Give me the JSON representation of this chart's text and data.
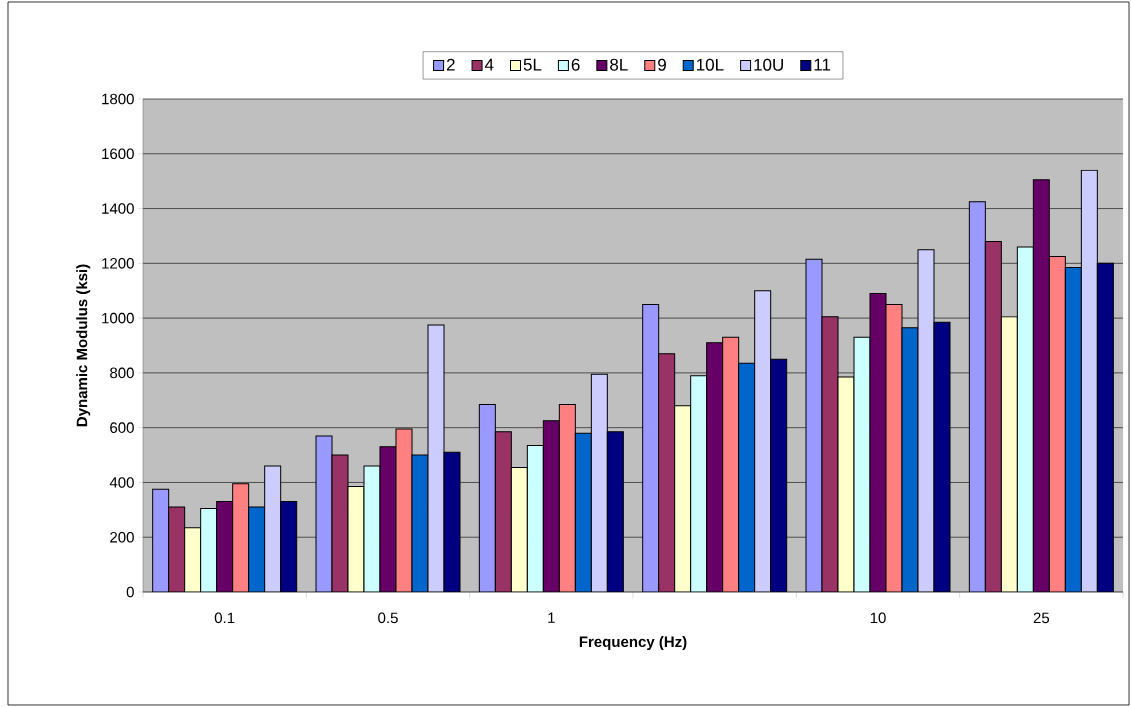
{
  "chart_data": {
    "type": "bar",
    "xlabel": "Frequency (Hz)",
    "ylabel": "Dynamic Modulus (ksi)",
    "categories": [
      "0.1",
      "0.5",
      "1",
      null,
      "10",
      "25"
    ],
    "series": [
      {
        "name": "2",
        "color": "#9999ff",
        "values": [
          375,
          570,
          685,
          1050,
          1215,
          1425
        ]
      },
      {
        "name": "4",
        "color": "#993366",
        "values": [
          310,
          500,
          585,
          870,
          1005,
          1280
        ]
      },
      {
        "name": "5L",
        "color": "#ffffcc",
        "values": [
          235,
          385,
          455,
          680,
          785,
          1005
        ]
      },
      {
        "name": "6",
        "color": "#ccffff",
        "values": [
          305,
          460,
          535,
          790,
          930,
          1260
        ]
      },
      {
        "name": "8L",
        "color": "#660066",
        "values": [
          330,
          530,
          625,
          910,
          1090,
          1505
        ]
      },
      {
        "name": "9",
        "color": "#ff8080",
        "values": [
          395,
          595,
          685,
          930,
          1050,
          1225
        ]
      },
      {
        "name": "10L",
        "color": "#0066cc",
        "values": [
          310,
          500,
          580,
          835,
          965,
          1185
        ]
      },
      {
        "name": "10U",
        "color": "#ccccff",
        "values": [
          460,
          975,
          795,
          1100,
          1250,
          1540
        ]
      },
      {
        "name": "11",
        "color": "#000080",
        "values": [
          330,
          510,
          585,
          850,
          985,
          1200
        ]
      }
    ],
    "ylim": [
      0,
      1800
    ],
    "yticks": [
      0,
      200,
      400,
      600,
      800,
      1000,
      1200,
      1400,
      1600,
      1800
    ],
    "grid": "y",
    "legend": "top"
  }
}
